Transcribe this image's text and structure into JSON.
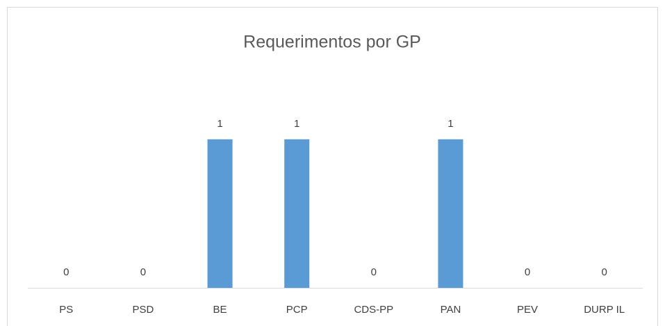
{
  "chart_data": {
    "type": "bar",
    "title": "Requerimentos por GP",
    "categories": [
      "PS",
      "PSD",
      "BE",
      "PCP",
      "CDS-PP",
      "PAN",
      "PEV",
      "DURP IL"
    ],
    "values": [
      0,
      0,
      1,
      1,
      0,
      1,
      0,
      0
    ],
    "color": "#5b9bd5",
    "ylim": [
      0,
      1.2
    ],
    "grid": false
  }
}
